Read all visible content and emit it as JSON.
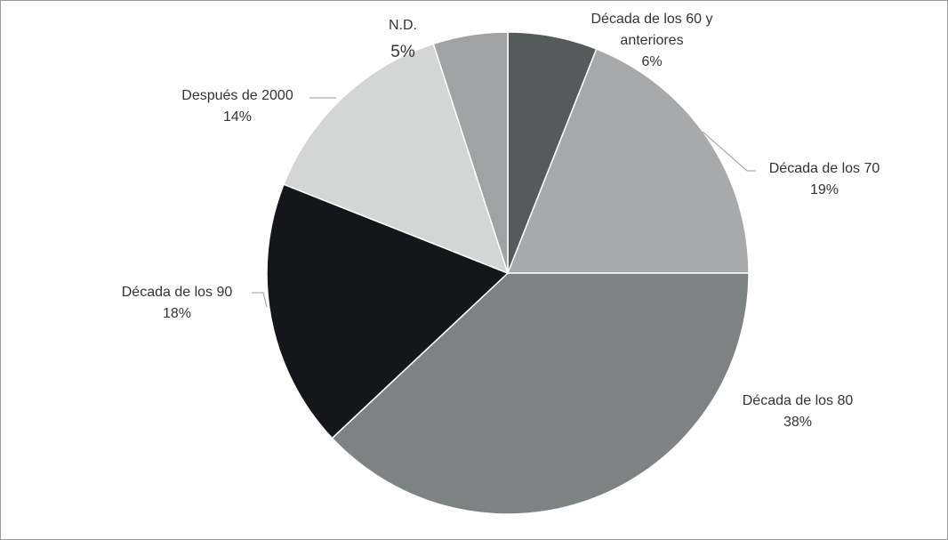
{
  "chart_data": {
    "type": "pie",
    "categories": [
      "Década de los 60 y anteriores",
      "Década de los 70",
      "Década de los 80",
      "Década de los 90",
      "Después de 2000",
      "N.D."
    ],
    "values": [
      6,
      19,
      38,
      18,
      14,
      5
    ],
    "value_labels": [
      "6%",
      "19%",
      "38%",
      "18%",
      "14%",
      "5%"
    ],
    "colors": [
      "#575a5b",
      "#a7a9aa",
      "#7f8283",
      "#15161a",
      "#d4d5d5",
      "#a0a2a3"
    ]
  }
}
